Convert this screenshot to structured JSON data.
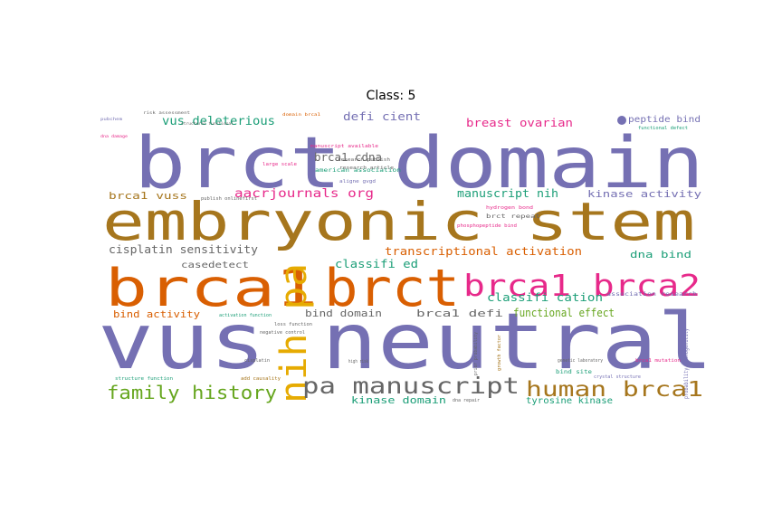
{
  "title": "Class: 5",
  "colors": {
    "purple": "#7570b3",
    "olive": "#a6761d",
    "orange": "#d95f02",
    "pink": "#e7298a",
    "teal": "#1b9e77",
    "green": "#66a61e",
    "gray": "#666666",
    "yellow": "#e6ab02"
  },
  "chart_data": {
    "type": "wordcloud",
    "title": "Class: 5",
    "words": [
      {
        "text": "brct domain",
        "color": "purple"
      },
      {
        "text": "embryonic stem",
        "color": "olive"
      },
      {
        "text": "vus neutral",
        "color": "purple"
      },
      {
        "text": "brca1",
        "color": "orange"
      },
      {
        "text": "brct",
        "color": "orange"
      },
      {
        "text": "brca1 brca2",
        "color": "pink"
      },
      {
        "text": "nih pa",
        "color": "yellow"
      },
      {
        "text": "pa manuscript",
        "color": "gray"
      },
      {
        "text": "human brca1",
        "color": "olive"
      },
      {
        "text": "family history",
        "color": "green"
      },
      {
        "text": "aacrjournals org",
        "color": "pink"
      },
      {
        "text": "vus deleterious",
        "color": "teal"
      },
      {
        "text": "defi cient",
        "color": "purple"
      },
      {
        "text": "breast ovarian",
        "color": "pink"
      },
      {
        "text": "peptide bind",
        "color": "purple"
      },
      {
        "text": "brca1 cdna",
        "color": "gray"
      },
      {
        "text": "brca1 vuss",
        "color": "olive"
      },
      {
        "text": "manuscript nih",
        "color": "teal"
      },
      {
        "text": "kinase activity",
        "color": "purple"
      },
      {
        "text": "cisplatin sensitivity",
        "color": "gray"
      },
      {
        "text": "transcriptional activation",
        "color": "orange"
      },
      {
        "text": "dna bind",
        "color": "teal"
      },
      {
        "text": "classifi ed",
        "color": "teal"
      },
      {
        "text": "case",
        "color": "gray"
      },
      {
        "text": "detect",
        "color": "gray"
      },
      {
        "text": "classifi cation",
        "color": "teal"
      },
      {
        "text": "bind activity",
        "color": "orange"
      },
      {
        "text": "bind domain",
        "color": "gray"
      },
      {
        "text": "brca1 defi",
        "color": "gray"
      },
      {
        "text": "functional effect",
        "color": "green"
      },
      {
        "text": "kinase domain",
        "color": "teal"
      },
      {
        "text": "tyrosine kinase",
        "color": "teal"
      },
      {
        "text": "american association",
        "color": "teal"
      },
      {
        "text": "manuscript available",
        "color": "pink"
      },
      {
        "text": "research publish",
        "color": "gray"
      },
      {
        "text": "risk assessment",
        "color": "gray"
      },
      {
        "text": "domain brca1",
        "color": "orange"
      },
      {
        "text": "structural functional",
        "color": "gray"
      },
      {
        "text": "pubchem",
        "color": "purple"
      },
      {
        "text": "dna damage",
        "color": "pink"
      },
      {
        "text": "brct repeat",
        "color": "gray"
      },
      {
        "text": "hydrogen bond",
        "color": "pink"
      },
      {
        "text": "association research",
        "color": "purple"
      },
      {
        "text": "activation function",
        "color": "teal"
      },
      {
        "text": "bind site",
        "color": "teal"
      },
      {
        "text": "genetic laboratory",
        "color": "gray"
      },
      {
        "text": "functional defect",
        "color": "teal"
      },
      {
        "text": "research article",
        "color": "gray"
      },
      {
        "text": "large scale",
        "color": "pink"
      },
      {
        "text": "aligne gvgd",
        "color": "purple"
      },
      {
        "text": "publish onlinefirst",
        "color": "gray"
      },
      {
        "text": "phosphopeptide bind",
        "color": "pink"
      },
      {
        "text": "loss function",
        "color": "gray"
      },
      {
        "text": "negative control",
        "color": "gray"
      },
      {
        "text": "structure function",
        "color": "teal"
      },
      {
        "text": "add causality",
        "color": "olive"
      },
      {
        "text": "brca1 mutation",
        "color": "pink"
      },
      {
        "text": "crystal structure",
        "color": "purple"
      },
      {
        "text": "prior probability",
        "color": "gray"
      },
      {
        "text": "high risk",
        "color": "gray"
      },
      {
        "text": "growth factor",
        "color": "olive"
      },
      {
        "text": "dna repair",
        "color": "gray"
      },
      {
        "text": "cisplatin",
        "color": "gray"
      },
      {
        "text": "probability pathogenicity",
        "color": "purple"
      }
    ]
  }
}
